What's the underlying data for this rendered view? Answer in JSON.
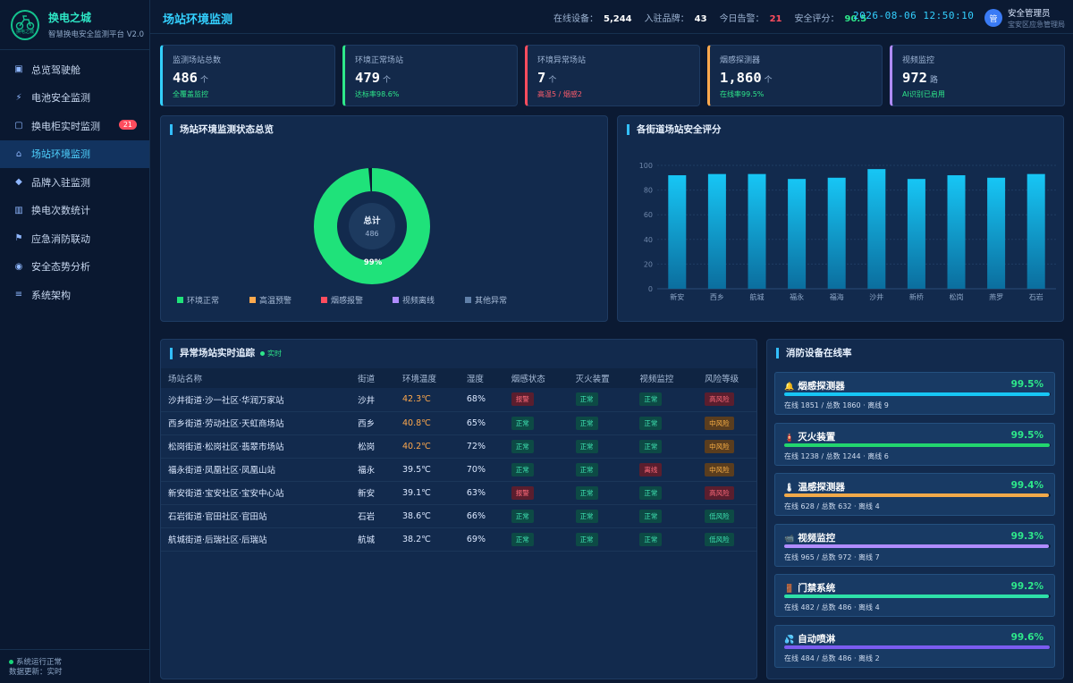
{
  "app": {
    "name": "换电之城",
    "subtitle": "智慧换电安全监测平台 V2.0",
    "logo_text": "换电之城"
  },
  "sidebar": {
    "items": [
      {
        "icon": "▣",
        "label": "总览驾驶舱"
      },
      {
        "icon": "⚡",
        "label": "电池安全监测"
      },
      {
        "icon": "▢",
        "label": "换电柜实时监测",
        "badge": "21"
      },
      {
        "icon": "⌂",
        "label": "场站环境监测",
        "active": true
      },
      {
        "icon": "◆",
        "label": "品牌入驻监测"
      },
      {
        "icon": "▥",
        "label": "换电次数统计"
      },
      {
        "icon": "⚑",
        "label": "应急消防联动"
      },
      {
        "icon": "◉",
        "label": "安全态势分析"
      },
      {
        "icon": "≡",
        "label": "系统架构"
      }
    ],
    "footer": {
      "status": "系统运行正常",
      "update": "数据更新：实时"
    }
  },
  "header": {
    "title": "场站环境监测",
    "stats": [
      {
        "label": "在线设备：",
        "value": "5,244"
      },
      {
        "label": "入驻品牌：",
        "value": "43"
      },
      {
        "label": "今日告警：",
        "value": "21"
      },
      {
        "label": "安全评分：",
        "value": "90.5"
      }
    ],
    "datetime": "2026-08-06 12:50:10",
    "user": {
      "avatar": "管",
      "name": "安全管理员",
      "role": "宝安区应急管理局"
    }
  },
  "kpis": [
    {
      "label": "监测场站总数",
      "value": "486",
      "unit": "个",
      "sub": "全覆盖监控",
      "color": "#33d0ff",
      "sub_color": "#2ee78a"
    },
    {
      "label": "环境正常场站",
      "value": "479",
      "unit": "个",
      "sub": "达标率98.6%",
      "color": "#2ee78a",
      "sub_color": "#2ee78a"
    },
    {
      "label": "环境异常场站",
      "value": "7",
      "unit": "个",
      "sub": "高温5 / 烟感2",
      "color": "#ff4d5e",
      "sub_color": "#ff5d6c"
    },
    {
      "label": "烟感探测器",
      "value": "1,860",
      "unit": "个",
      "sub": "在线率99.5%",
      "color": "#ffa94d",
      "sub_color": "#2ee78a"
    },
    {
      "label": "视频监控",
      "value": "972",
      "unit": "路",
      "sub": "AI识别已启用",
      "color": "#b08cff",
      "sub_color": "#2ee78a"
    }
  ],
  "donut_panel": {
    "title": "场站环境监测状态总览",
    "center_label": "总计",
    "center_value": "486",
    "percent_label": "99%",
    "legend": [
      {
        "name": "环境正常",
        "color": "#1fe27a"
      },
      {
        "name": "高温预警",
        "color": "#ffa94d"
      },
      {
        "name": "烟感报警",
        "color": "#ff4d5e"
      },
      {
        "name": "视频离线",
        "color": "#b08cff"
      },
      {
        "name": "其他异常",
        "color": "#5f7fa8"
      }
    ]
  },
  "chart_data": {
    "type": "bar",
    "title": "各街道场站安全评分",
    "categories": [
      "新安",
      "西乡",
      "航城",
      "福永",
      "福海",
      "沙井",
      "新桥",
      "松岗",
      "燕罗",
      "石岩"
    ],
    "values": [
      92,
      93,
      93,
      89,
      90,
      97,
      89,
      92,
      90,
      93
    ],
    "ylim": [
      0,
      100
    ],
    "yticks": [
      0,
      20,
      40,
      60,
      80,
      100
    ],
    "grid": true,
    "color": "#17c6f5"
  },
  "table_panel": {
    "title": "异常场站实时追踪",
    "live": "实时",
    "columns": [
      "场站名称",
      "街道",
      "环境温度",
      "湿度",
      "烟感状态",
      "灭火装置",
      "视频监控",
      "风险等级"
    ],
    "rows": [
      {
        "name": "沙井街道·沙一社区·华润万家站",
        "street": "沙井",
        "temp": "42.3℃",
        "hot": true,
        "humidity": "68%",
        "smoke": "报警",
        "smoke_s": "bad",
        "fire": "正常",
        "fire_s": "ok",
        "video": "正常",
        "video_s": "ok",
        "risk": "高风险",
        "risk_s": "high"
      },
      {
        "name": "西乡街道·劳动社区·天虹商场站",
        "street": "西乡",
        "temp": "40.8℃",
        "hot": true,
        "humidity": "65%",
        "smoke": "正常",
        "smoke_s": "ok",
        "fire": "正常",
        "fire_s": "ok",
        "video": "正常",
        "video_s": "ok",
        "risk": "中风险",
        "risk_s": "mid"
      },
      {
        "name": "松岗街道·松岗社区·翡翠市场站",
        "street": "松岗",
        "temp": "40.2℃",
        "hot": true,
        "humidity": "72%",
        "smoke": "正常",
        "smoke_s": "ok",
        "fire": "正常",
        "fire_s": "ok",
        "video": "正常",
        "video_s": "ok",
        "risk": "中风险",
        "risk_s": "mid"
      },
      {
        "name": "福永街道·凤凰社区·凤凰山站",
        "street": "福永",
        "temp": "39.5℃",
        "hot": false,
        "humidity": "70%",
        "smoke": "正常",
        "smoke_s": "ok",
        "fire": "正常",
        "fire_s": "ok",
        "video": "离线",
        "video_s": "bad",
        "risk": "中风险",
        "risk_s": "mid"
      },
      {
        "name": "新安街道·宝安社区·宝安中心站",
        "street": "新安",
        "temp": "39.1℃",
        "hot": false,
        "humidity": "63%",
        "smoke": "报警",
        "smoke_s": "bad",
        "fire": "正常",
        "fire_s": "ok",
        "video": "正常",
        "video_s": "ok",
        "risk": "高风险",
        "risk_s": "high"
      },
      {
        "name": "石岩街道·官田社区·官田站",
        "street": "石岩",
        "temp": "38.6℃",
        "hot": false,
        "humidity": "66%",
        "smoke": "正常",
        "smoke_s": "ok",
        "fire": "正常",
        "fire_s": "ok",
        "video": "正常",
        "video_s": "ok",
        "risk": "低风险",
        "risk_s": "low"
      },
      {
        "name": "航城街道·后瑞社区·后瑞站",
        "street": "航城",
        "temp": "38.2℃",
        "hot": false,
        "humidity": "69%",
        "smoke": "正常",
        "smoke_s": "ok",
        "fire": "正常",
        "fire_s": "ok",
        "video": "正常",
        "video_s": "ok",
        "risk": "低风险",
        "risk_s": "low"
      }
    ]
  },
  "devices_panel": {
    "title": "消防设备在线率",
    "items": [
      {
        "icon": "🔔",
        "name": "烟感探测器",
        "percent": "99.5%",
        "rate": 0.995,
        "detail": "在线 1851 / 总数 1860 · 离线 9",
        "color": "#17c6f5"
      },
      {
        "icon": "🧯",
        "name": "灭火装置",
        "percent": "99.5%",
        "rate": 0.995,
        "detail": "在线 1238 / 总数 1244 · 离线 6",
        "color": "#22d66e"
      },
      {
        "icon": "🌡",
        "name": "温感探测器",
        "percent": "99.4%",
        "rate": 0.994,
        "detail": "在线 628 / 总数 632 · 离线 4",
        "color": "#f0a94a"
      },
      {
        "icon": "📹",
        "name": "视频监控",
        "percent": "99.3%",
        "rate": 0.993,
        "detail": "在线 965 / 总数 972 · 离线 7",
        "color": "#b08cff"
      },
      {
        "icon": "🚪",
        "name": "门禁系统",
        "percent": "99.2%",
        "rate": 0.992,
        "detail": "在线 482 / 总数 486 · 离线 4",
        "color": "#2ee0a8"
      },
      {
        "icon": "💦",
        "name": "自动喷淋",
        "percent": "99.6%",
        "rate": 0.996,
        "detail": "在线 484 / 总数 486 · 离线 2",
        "color": "#7b5cf0"
      }
    ]
  }
}
